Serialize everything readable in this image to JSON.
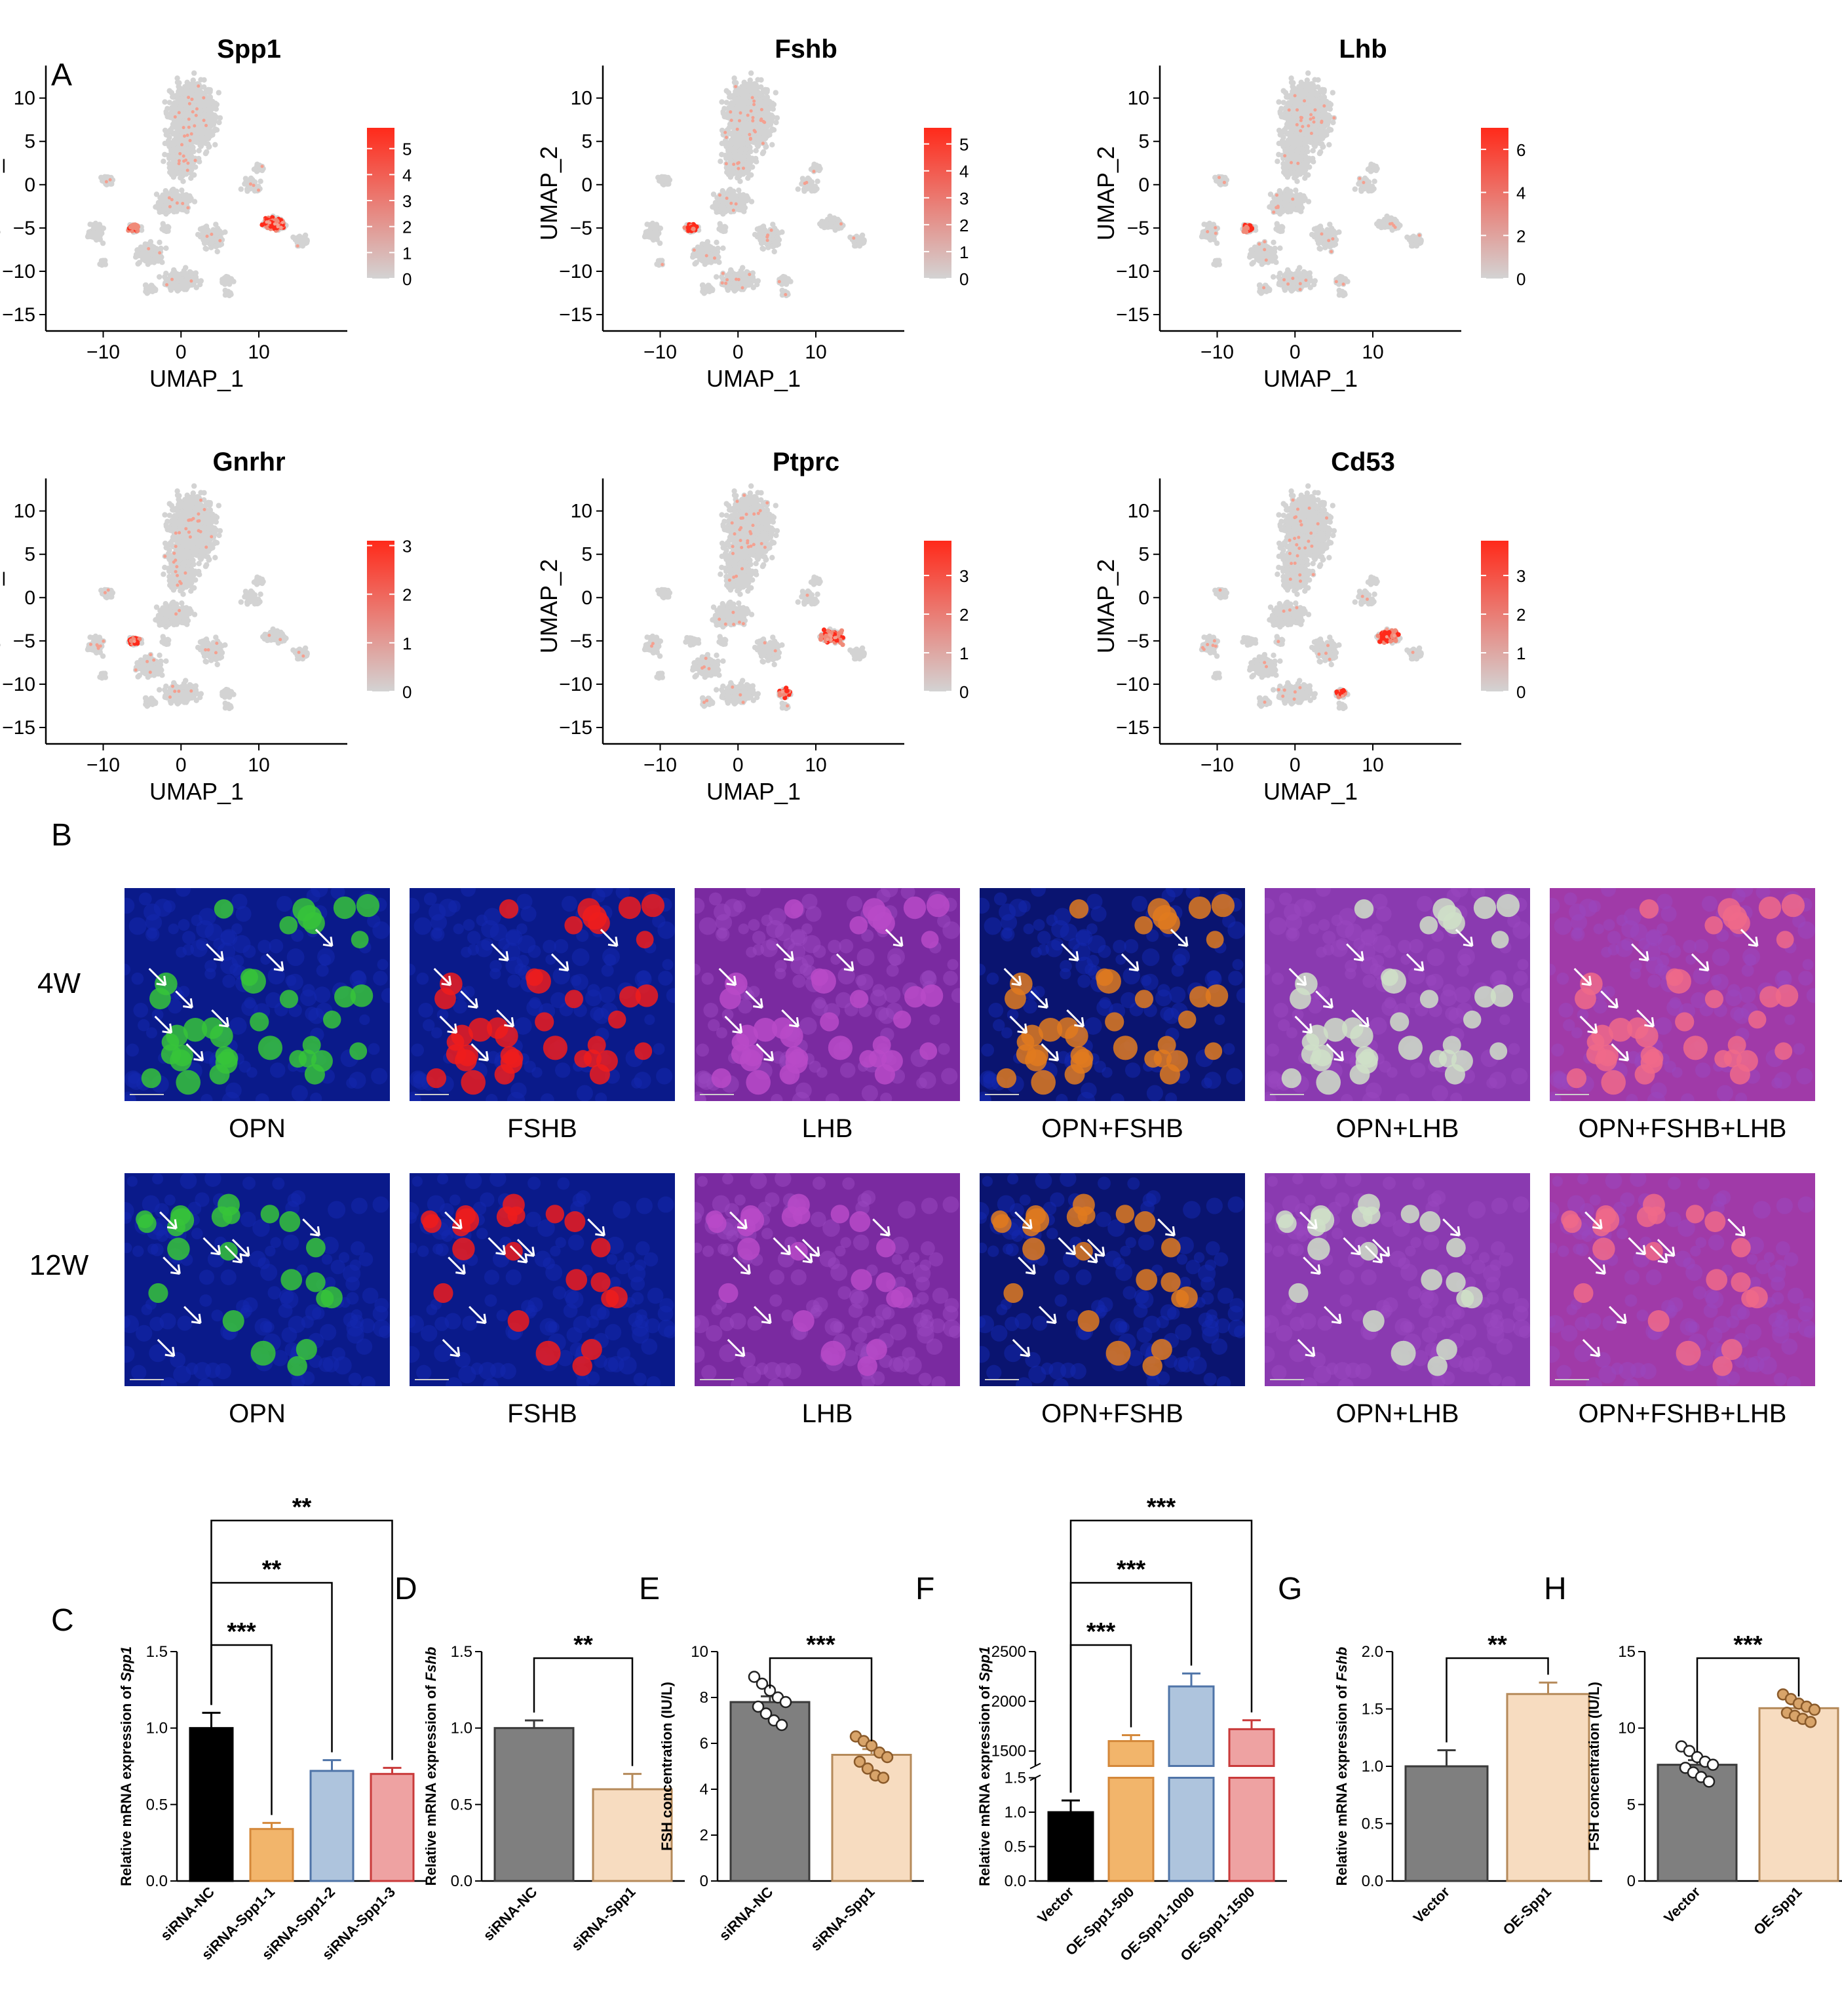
{
  "panel_labels": [
    "A",
    "B",
    "C",
    "D",
    "E",
    "F",
    "G",
    "H"
  ],
  "umap": {
    "x_label": "UMAP_1",
    "y_label": "UMAP_2",
    "x_ticks": [
      -10,
      0,
      10
    ],
    "y_ticks": [
      10,
      5,
      0,
      -5,
      -10,
      -15
    ],
    "xlim": [
      -14,
      18
    ],
    "ylim": [
      -15,
      13
    ],
    "base_color": "#d3d3d3",
    "high_color": "#ff2a1a"
  },
  "chart_data": [
    {
      "type": "scatter",
      "panel": "A",
      "title": "Spp1",
      "colorbar_ticks": [
        5,
        4,
        3,
        2,
        1,
        0
      ],
      "colorbar_max": 5.8,
      "hotspots": [
        [
          12,
          -4.5
        ],
        [
          -6,
          -5
        ]
      ]
    },
    {
      "type": "scatter",
      "panel": "A",
      "title": "Fshb",
      "colorbar_ticks": [
        5,
        4,
        3,
        2,
        1,
        0
      ],
      "colorbar_max": 5.6,
      "hotspots": [
        [
          -6,
          -5
        ]
      ]
    },
    {
      "type": "scatter",
      "panel": "A",
      "title": "Lhb",
      "colorbar_ticks": [
        6,
        4,
        2,
        0
      ],
      "colorbar_max": 7,
      "hotspots": [
        [
          -6,
          -5
        ]
      ]
    },
    {
      "type": "scatter",
      "panel": "A",
      "title": "Gnrhr",
      "colorbar_ticks": [
        3,
        2,
        1,
        0
      ],
      "colorbar_max": 3.1,
      "hotspots": [
        [
          -6,
          -5
        ]
      ]
    },
    {
      "type": "scatter",
      "panel": "A",
      "title": "Ptprc",
      "colorbar_ticks": [
        3,
        2,
        1,
        0
      ],
      "colorbar_max": 3.9,
      "hotspots": [
        [
          12,
          -4.5
        ],
        [
          6,
          -11
        ]
      ]
    },
    {
      "type": "scatter",
      "panel": "A",
      "title": "Cd53",
      "colorbar_ticks": [
        3,
        2,
        1,
        0
      ],
      "colorbar_max": 3.9,
      "hotspots": [
        [
          12,
          -4.5
        ],
        [
          6,
          -11
        ]
      ]
    },
    {
      "type": "bar",
      "panel": "C",
      "ylabel": "Relative mRNA expression of Spp1",
      "ylabel_plain": "Relative mRNA expression of ",
      "ylabel_italic": "Spp1",
      "categories": [
        "siRNA-NC",
        "siRNA-Spp1-1",
        "siRNA-Spp1-2",
        "siRNA-Spp1-3"
      ],
      "values": [
        1.0,
        0.34,
        0.72,
        0.7
      ],
      "errors": [
        0.1,
        0.04,
        0.07,
        0.04
      ],
      "ylim": [
        0,
        1.5
      ],
      "yticks": [
        0,
        0.5,
        1.0,
        1.5
      ],
      "ytick_labels": [
        "0.0",
        "0.5",
        "1.0",
        "1.5"
      ],
      "fill": [
        "#000000",
        "#f2b56b",
        "#aec4dd",
        "#eea2a2"
      ],
      "edge": [
        "#000000",
        "#d4883a",
        "#4f74a8",
        "#c93a3a"
      ],
      "significance": [
        {
          "from": 0,
          "to": 1,
          "label": "***"
        },
        {
          "from": 0,
          "to": 2,
          "label": "**"
        },
        {
          "from": 0,
          "to": 3,
          "label": "**"
        }
      ]
    },
    {
      "type": "bar",
      "panel": "D",
      "ylabel": "Relative mRNA expression of Fshb",
      "ylabel_plain": "Relative mRNA expression of ",
      "ylabel_italic": "Fshb",
      "categories": [
        "siRNA-NC",
        "siRNA-Spp1"
      ],
      "values": [
        1.0,
        0.6
      ],
      "errors": [
        0.05,
        0.1
      ],
      "ylim": [
        0,
        1.5
      ],
      "yticks": [
        0,
        0.5,
        1.0,
        1.5
      ],
      "ytick_labels": [
        "0.0",
        "0.5",
        "1.0",
        "1.5"
      ],
      "fill": [
        "#7f7f7f",
        "#f7dcc0"
      ],
      "edge": [
        "#3a3a3a",
        "#b58a5a"
      ],
      "significance": [
        {
          "from": 0,
          "to": 1,
          "label": "**"
        }
      ]
    },
    {
      "type": "bar",
      "panel": "E",
      "ylabel": "FSH concentration (IU/L)",
      "ylabel_plain": "FSH concentration (IU/L)",
      "ylabel_italic": "",
      "categories": [
        "siRNA-NC",
        "siRNA-Spp1"
      ],
      "values": [
        7.8,
        5.5
      ],
      "errors": [
        0.25,
        0.25
      ],
      "ylim": [
        0,
        10
      ],
      "yticks": [
        0,
        2,
        4,
        6,
        8,
        10
      ],
      "ytick_labels": [
        "0",
        "2",
        "4",
        "6",
        "8",
        "10"
      ],
      "fill": [
        "#7f7f7f",
        "#f7dcc0"
      ],
      "edge": [
        "#3a3a3a",
        "#b58a5a"
      ],
      "points": [
        [
          8.9,
          8.6,
          8.3,
          8.0,
          7.8,
          7.6,
          7.3,
          7.0,
          6.8
        ],
        [
          6.3,
          6.1,
          5.9,
          5.6,
          5.4,
          5.2,
          4.9,
          4.6,
          4.5
        ]
      ],
      "point_fill": [
        "#ffffff",
        "#d8a46a"
      ],
      "significance": [
        {
          "from": 0,
          "to": 1,
          "label": "***"
        }
      ]
    },
    {
      "type": "bar",
      "panel": "F",
      "ylabel": "Relative mRNA expression of Spp1",
      "ylabel_plain": "Relative mRNA expression of ",
      "ylabel_italic": "Spp1",
      "categories": [
        "Vector",
        "OE-Spp1-500",
        "OE-Spp1-1000",
        "OE-Spp1-1500"
      ],
      "values": [
        1.0,
        1600,
        2150,
        1720
      ],
      "errors": [
        0.17,
        60,
        130,
        90
      ],
      "broken_axis": {
        "lower": [
          0,
          1.5
        ],
        "upper": [
          1350,
          2500
        ]
      },
      "lower_ticks": [
        0,
        0.5,
        1.0,
        1.5
      ],
      "lower_tick_labels": [
        "0.0",
        "0.5",
        "1.0",
        "1.5"
      ],
      "upper_ticks": [
        1500,
        2000,
        2500
      ],
      "upper_tick_labels": [
        "1500",
        "2000",
        "2500"
      ],
      "fill": [
        "#000000",
        "#f2b56b",
        "#aec4dd",
        "#eea2a2"
      ],
      "edge": [
        "#000000",
        "#d4883a",
        "#4f74a8",
        "#c93a3a"
      ],
      "significance": [
        {
          "from": 0,
          "to": 1,
          "label": "***"
        },
        {
          "from": 0,
          "to": 2,
          "label": "***"
        },
        {
          "from": 0,
          "to": 3,
          "label": "***"
        }
      ]
    },
    {
      "type": "bar",
      "panel": "G",
      "ylabel": "Relative mRNA expression of Fshb",
      "ylabel_plain": "Relative mRNA expression of ",
      "ylabel_italic": "Fshb",
      "categories": [
        "Vector",
        "OE-Spp1"
      ],
      "values": [
        1.0,
        1.63
      ],
      "errors": [
        0.14,
        0.1
      ],
      "ylim": [
        0,
        2.0
      ],
      "yticks": [
        0,
        0.5,
        1.0,
        1.5,
        2.0
      ],
      "ytick_labels": [
        "0.0",
        "0.5",
        "1.0",
        "1.5",
        "2.0"
      ],
      "fill": [
        "#7f7f7f",
        "#f7dcc0"
      ],
      "edge": [
        "#3a3a3a",
        "#b58a5a"
      ],
      "significance": [
        {
          "from": 0,
          "to": 1,
          "label": "**"
        }
      ]
    },
    {
      "type": "bar",
      "panel": "H",
      "ylabel": "FSH concentration (IU/L)",
      "ylabel_plain": "FSH concentration (IU/L)",
      "ylabel_italic": "",
      "categories": [
        "Vector",
        "OE-Spp1"
      ],
      "values": [
        7.6,
        11.3
      ],
      "errors": [
        0.3,
        0.25
      ],
      "ylim": [
        0,
        15
      ],
      "yticks": [
        0,
        5,
        10,
        15
      ],
      "ytick_labels": [
        "0",
        "5",
        "10",
        "15"
      ],
      "fill": [
        "#7f7f7f",
        "#f7dcc0"
      ],
      "edge": [
        "#3a3a3a",
        "#b58a5a"
      ],
      "points": [
        [
          8.8,
          8.5,
          8.1,
          7.8,
          7.6,
          7.4,
          7.1,
          6.8,
          6.5
        ],
        [
          12.2,
          11.9,
          11.6,
          11.4,
          11.2,
          11.0,
          10.8,
          10.6,
          10.4
        ]
      ],
      "point_fill": [
        "#ffffff",
        "#d8a46a"
      ],
      "significance": [
        {
          "from": 0,
          "to": 1,
          "label": "***"
        }
      ]
    }
  ],
  "microscopy": {
    "rows": [
      "4W",
      "12W"
    ],
    "captions": [
      "OPN",
      "FSHB",
      "LHB",
      "OPN+FSHB",
      "OPN+LHB",
      "OPN+FSHB+LHB"
    ],
    "types": [
      "g",
      "r",
      "m",
      "gr",
      "gm",
      "grm"
    ]
  }
}
